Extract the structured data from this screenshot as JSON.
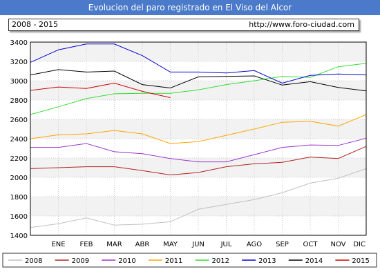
{
  "header": {
    "title": "Evolucion del paro registrado en El Viso del Alcor",
    "range": "2008 - 2015",
    "url": "http://www.foro-ciudad.com"
  },
  "chart_data": {
    "type": "line",
    "title": "Evolucion del paro registrado en El Viso del Alcor",
    "categories": [
      "ENE",
      "FEB",
      "MAR",
      "ABR",
      "MAY",
      "JUN",
      "JUL",
      "AGO",
      "SEP",
      "OCT",
      "NOV",
      "DIC"
    ],
    "yticks": [
      1400,
      1600,
      1800,
      2000,
      2200,
      2400,
      2600,
      2800,
      3000,
      3200,
      3400
    ],
    "ylim": [
      1400,
      3400
    ],
    "grid": true,
    "legend_position": "bottom",
    "series": [
      {
        "name": "2008",
        "color": "#c0c0c0",
        "values": [
          1520,
          1580,
          1505,
          1515,
          1540,
          1670,
          1720,
          1770,
          1840,
          1940,
          1990,
          2090
        ],
        "start": 1480
      },
      {
        "name": "2009",
        "color": "#b22222",
        "values": [
          2100,
          2110,
          2110,
          2070,
          2025,
          2050,
          2110,
          2140,
          2155,
          2210,
          2195,
          2320
        ],
        "start": 2090
      },
      {
        "name": "2010",
        "color": "#9932cc",
        "values": [
          2310,
          2350,
          2265,
          2245,
          2195,
          2160,
          2160,
          2235,
          2310,
          2335,
          2330,
          2405
        ],
        "start": 2310
      },
      {
        "name": "2011",
        "color": "#ffa500",
        "values": [
          2440,
          2450,
          2485,
          2450,
          2350,
          2370,
          2435,
          2500,
          2570,
          2580,
          2530,
          2650
        ],
        "start": 2400
      },
      {
        "name": "2012",
        "color": "#33dd33",
        "values": [
          2730,
          2815,
          2865,
          2870,
          2870,
          2905,
          2960,
          3000,
          3045,
          3035,
          3145,
          3180
        ],
        "start": 2650
      },
      {
        "name": "2013",
        "color": "#0000cc",
        "values": [
          3320,
          3380,
          3380,
          3260,
          3090,
          3090,
          3080,
          3105,
          2975,
          3055,
          3070,
          3060
        ],
        "start": 3190
      },
      {
        "name": "2014",
        "color": "#000000",
        "values": [
          3115,
          3090,
          3100,
          2960,
          2925,
          3040,
          3045,
          3050,
          2955,
          2990,
          2930,
          2895
        ],
        "start": 3060
      },
      {
        "name": "2015",
        "color": "#cc0000",
        "values": [
          2935,
          2920,
          2975,
          2890,
          2825,
          null,
          null,
          null,
          null,
          null,
          null,
          null
        ],
        "start": 2900
      }
    ]
  }
}
